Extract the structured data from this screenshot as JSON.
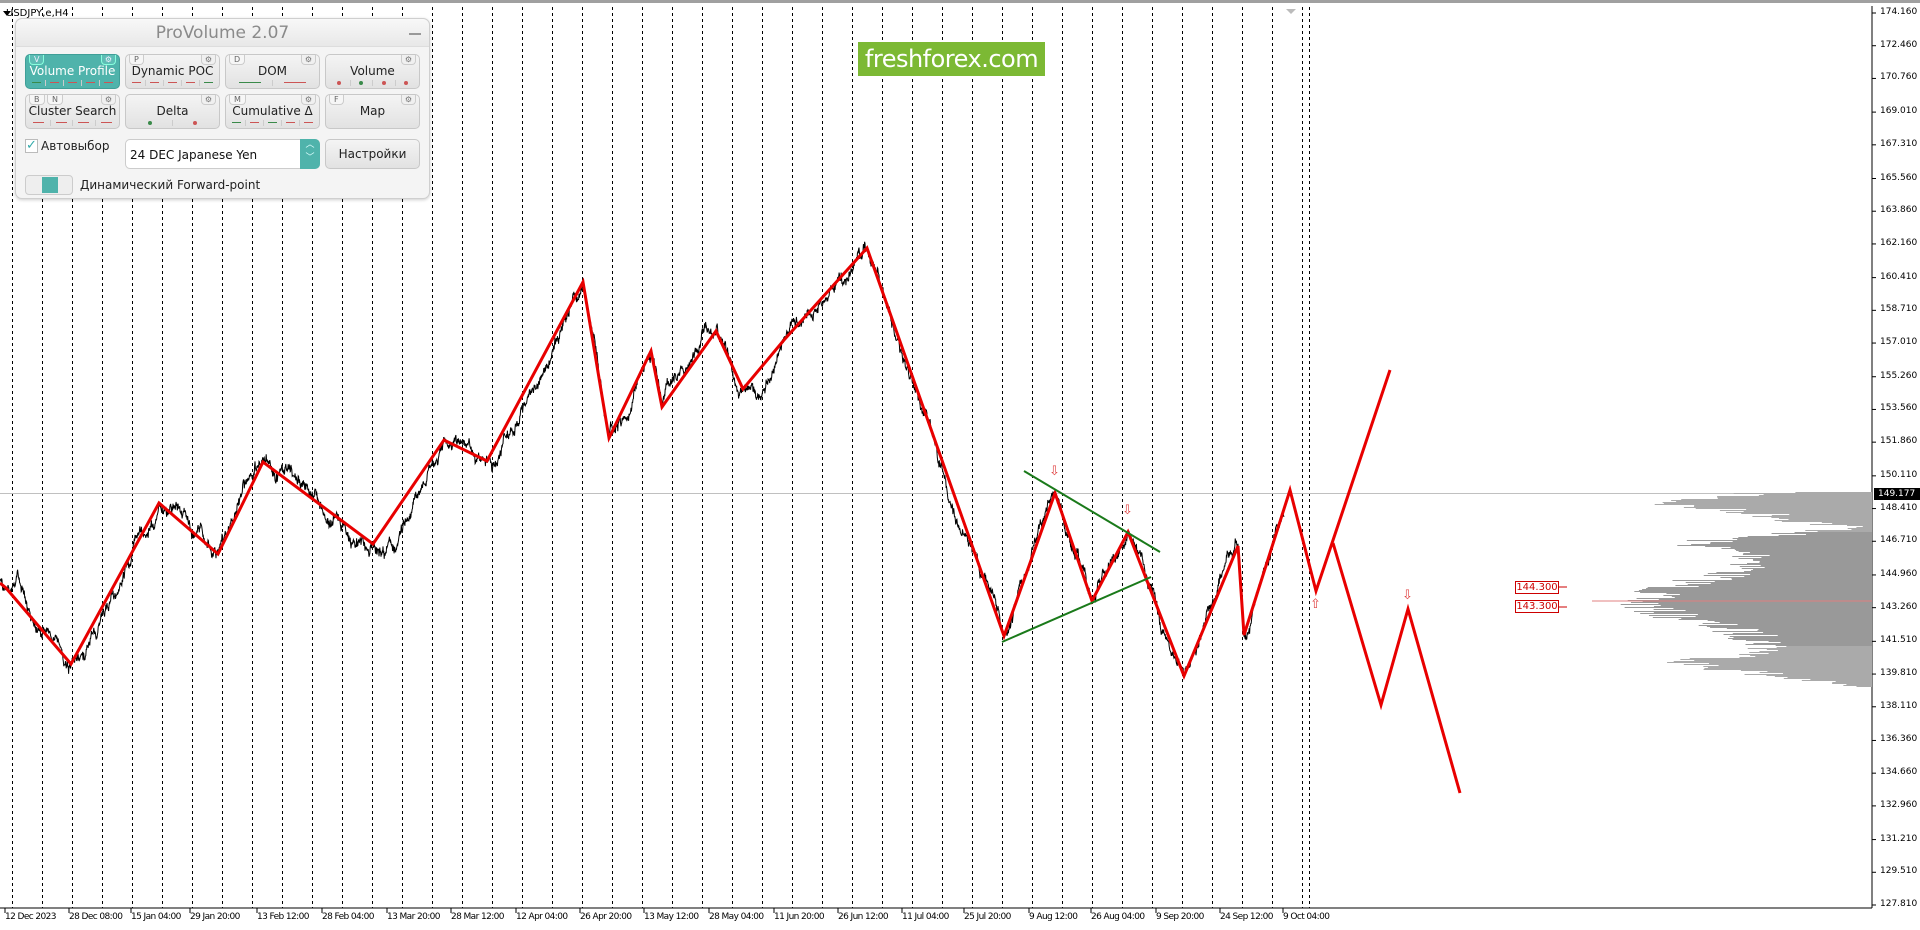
{
  "chart": {
    "symbol": "USDJPY,e,H4",
    "current_price": "149.177",
    "price_ticks": [
      "174.160",
      "172.460",
      "170.760",
      "169.010",
      "167.310",
      "165.560",
      "163.860",
      "162.160",
      "160.410",
      "158.710",
      "157.010",
      "155.260",
      "153.560",
      "151.860",
      "150.110",
      "148.410",
      "146.710",
      "144.960",
      "143.260",
      "141.510",
      "139.810",
      "138.110",
      "136.360",
      "134.660",
      "132.960",
      "131.210",
      "129.510",
      "127.810"
    ],
    "time_labels": [
      "12 Dec 2023",
      "28 Dec 08:00",
      "15 Jan 04:00",
      "29 Jan 20:00",
      "13 Feb 12:00",
      "28 Feb 04:00",
      "13 Mar 20:00",
      "28 Mar 12:00",
      "12 Apr 04:00",
      "26 Apr 20:00",
      "13 May 12:00",
      "28 May 04:00",
      "11 Jun 20:00",
      "26 Jun 12:00",
      "11 Jul 04:00",
      "25 Jul 20:00",
      "9 Aug 12:00",
      "26 Aug 04:00",
      "9 Sep 20:00",
      "24 Sep 12:00",
      "9 Oct 04:00"
    ],
    "level_labels": [
      "144.300",
      "143.300"
    ],
    "colors": {
      "zigzag": "#e80000",
      "trendline": "#1a7a1a",
      "price": "#000000",
      "profile": "#999999",
      "logo": "#7cb934"
    }
  },
  "logo": {
    "text": "freshforex.com"
  },
  "panel": {
    "title": "ProVolume 2.07",
    "buttons": [
      {
        "label": "Volume Profile",
        "key": "V",
        "active": true
      },
      {
        "label": "Dynamic POC",
        "key": "P"
      },
      {
        "label": "DOM",
        "key": "D"
      },
      {
        "label": "Volume",
        "key": ""
      },
      {
        "label": "Cluster Search",
        "key": "B",
        "key2": "N"
      },
      {
        "label": "Delta",
        "key": ""
      },
      {
        "label": "Cumulative Δ",
        "key": "M"
      },
      {
        "label": "Map",
        "key": "F"
      }
    ],
    "auto_select_label": "Автовыбор",
    "auto_select_checked": true,
    "instrument": "24 DEC Japanese Yen",
    "settings_label": "Настройки",
    "forward_point_label": "Динамический Forward-point"
  }
}
